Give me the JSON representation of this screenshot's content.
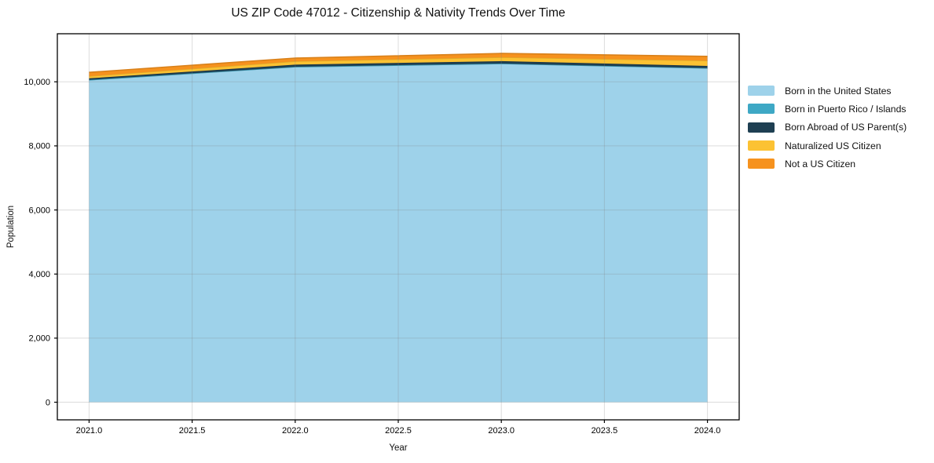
{
  "chart_data": {
    "type": "area",
    "stacked": true,
    "title": "US ZIP Code 47012 - Citizenship & Nativity Trends Over Time",
    "xlabel": "Year",
    "ylabel": "Population",
    "x": [
      2021,
      2022,
      2023,
      2024
    ],
    "series": [
      {
        "name": "Born in the United States",
        "color": "#9ed2ea",
        "values": [
          10060,
          10470,
          10570,
          10430
        ]
      },
      {
        "name": "Born in Puerto Rico / Islands",
        "color": "#3ea8c5",
        "values": [
          0,
          0,
          0,
          0
        ]
      },
      {
        "name": "Born Abroad of US Parent(s)",
        "color": "#1e3f52",
        "values": [
          50,
          65,
          75,
          65
        ]
      },
      {
        "name": "Naturalized US Citizen",
        "color": "#fcc233",
        "values": [
          65,
          105,
          120,
          165
        ]
      },
      {
        "name": "Not a US Citizen",
        "color": "#f6921e",
        "values": [
          120,
          100,
          120,
          135
        ]
      }
    ],
    "xticks": {
      "values": [
        2021.0,
        2021.5,
        2022.0,
        2022.5,
        2023.0,
        2023.5,
        2024.0
      ],
      "labels": [
        "2021.0",
        "2021.5",
        "2022.0",
        "2022.5",
        "2023.0",
        "2023.5",
        "2024.0"
      ]
    },
    "yticks": {
      "values": [
        0,
        2000,
        4000,
        6000,
        8000,
        10000
      ],
      "labels": [
        "0",
        "2,000",
        "4,000",
        "6,000",
        "8,000",
        "10,000"
      ]
    },
    "xlim": [
      2020.846,
      2024.154
    ],
    "ylim": [
      -550,
      11500
    ],
    "grid": true,
    "legend_position": "right-outside",
    "colors": {
      "spine": "#000000",
      "tick_label": "#000000",
      "gridline": "rgba(130,130,130,0.28)",
      "background": "#ffffff"
    }
  }
}
